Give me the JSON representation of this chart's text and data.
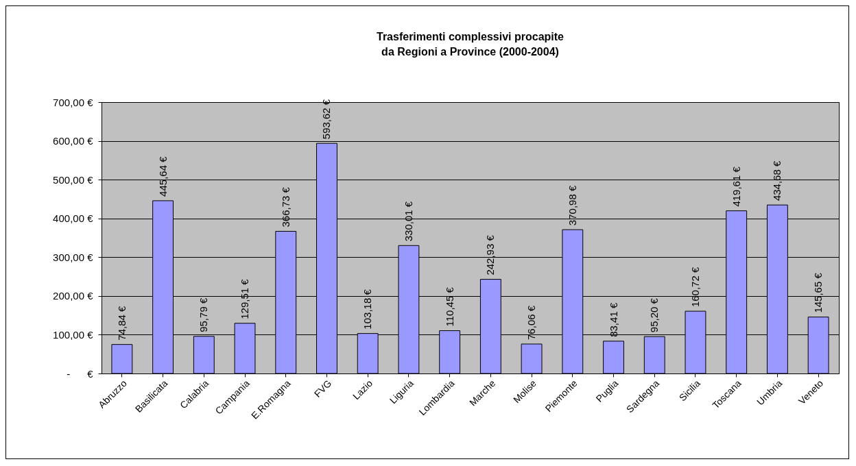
{
  "chart_data": {
    "type": "bar",
    "title": "Trasferimenti complessivi procapite\nda Regioni a Province (2000-2004)",
    "categories": [
      "Abruzzo",
      "Basilicata",
      "Calabria",
      "Campania",
      "E.Romagna",
      "FVG",
      "Lazio",
      "Liguria",
      "Lombardia",
      "Marche",
      "Molise",
      "Piemonte",
      "Puglia",
      "Sardegna",
      "Sicilia",
      "Toscana",
      "Umbria",
      "Veneto"
    ],
    "values": [
      74.84,
      445.64,
      95.79,
      129.51,
      366.73,
      593.62,
      103.18,
      330.01,
      110.45,
      242.93,
      76.06,
      370.98,
      83.41,
      95.2,
      160.72,
      419.61,
      434.68,
      145.65
    ],
    "value_labels": [
      "74,84 €",
      "445,64 €",
      "95,79 €",
      "129,51 €",
      "366,73 €",
      "593,62 €",
      "103,18 €",
      "330,01 €",
      "110,45 €",
      "242,93 €",
      "76,06 €",
      "370,98 €",
      "83,41 €",
      "95,20 €",
      "160,72 €",
      "419,61 €",
      "434,68 €",
      "145,65 €"
    ],
    "color": "#9999ff",
    "ylim": [
      0,
      700
    ],
    "yticks": [
      {
        "value": 0,
        "label": "-      €"
      },
      {
        "value": 100,
        "label": "100,00 €"
      },
      {
        "value": 200,
        "label": "200,00 €"
      },
      {
        "value": 300,
        "label": "300,00 €"
      },
      {
        "value": 400,
        "label": "400,00 €"
      },
      {
        "value": 500,
        "label": "500,00 €"
      },
      {
        "value": 600,
        "label": "600,00 €"
      },
      {
        "value": 700,
        "label": "700,00 €"
      }
    ],
    "grid": "y"
  }
}
